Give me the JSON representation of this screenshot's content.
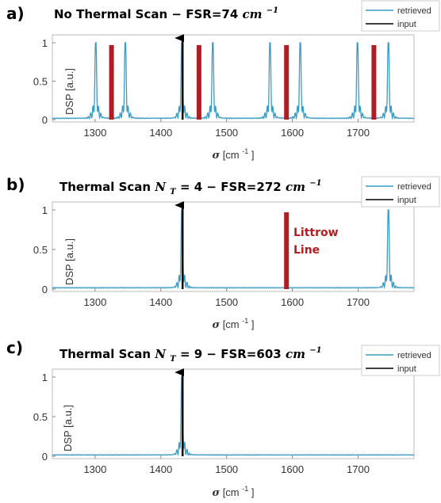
{
  "chart_data": [
    {
      "type": "line",
      "panel_label": "a)",
      "title": {
        "main": "No Thermal Scan",
        "fsr": "FSR=74",
        "unit": "cm",
        "unit_exp": "−1"
      },
      "xlabel": {
        "symbol": "σ",
        "unit": "[cm",
        "exp": "-1",
        "close": "]"
      },
      "ylabel": "DSP [a.u.]",
      "xlim": [
        1235,
        1785
      ],
      "ylim": [
        0,
        1.05
      ],
      "xticks": [
        1300,
        1400,
        1500,
        1600,
        1700
      ],
      "yticks": [
        0,
        0.5,
        1
      ],
      "legend": [
        "retrieved",
        "input"
      ],
      "retrieved_peaks": [
        1301,
        1346,
        1432,
        1479,
        1566,
        1612,
        1699,
        1746
      ],
      "input_line": {
        "x": 1433,
        "y": 1
      },
      "red_lines": [
        1325,
        1458,
        1591,
        1724
      ],
      "colors": {
        "retrieved": "#3a9cc4",
        "input": "#000000",
        "red": "#b01e23"
      }
    },
    {
      "type": "line",
      "panel_label": "b)",
      "title": {
        "main": "Thermal Scan",
        "nt_symbol": "N",
        "nt_sub": "T",
        "nt_value": "= 4 − FSR=272",
        "unit": "cm",
        "unit_exp": "−1"
      },
      "xlabel": {
        "symbol": "σ",
        "unit": "[cm",
        "exp": "-1",
        "close": "]"
      },
      "ylabel": "DSP [a.u.]",
      "xlim": [
        1235,
        1785
      ],
      "ylim": [
        0,
        1.05
      ],
      "xticks": [
        1300,
        1400,
        1500,
        1600,
        1700
      ],
      "yticks": [
        0,
        0.5,
        1
      ],
      "legend": [
        "retrieved",
        "input"
      ],
      "retrieved_peaks": [
        1432,
        1746
      ],
      "input_line": {
        "x": 1433,
        "y": 1
      },
      "red_lines": [
        1591
      ],
      "annotation": [
        "Littrow",
        "Line"
      ],
      "colors": {
        "retrieved": "#3a9cc4",
        "input": "#000000",
        "red": "#b01e23"
      }
    },
    {
      "type": "line",
      "panel_label": "c)",
      "title": {
        "main": "Thermal Scan",
        "nt_symbol": "N",
        "nt_sub": "T",
        "nt_value": "= 9 − FSR=603",
        "unit": "cm",
        "unit_exp": "−1"
      },
      "xlabel": {
        "symbol": "σ",
        "unit": "[cm",
        "exp": "-1",
        "close": "]"
      },
      "ylabel": "DSP [a.u.]",
      "xlim": [
        1235,
        1785
      ],
      "ylim": [
        0,
        1.05
      ],
      "xticks": [
        1300,
        1400,
        1500,
        1600,
        1700
      ],
      "yticks": [
        0,
        0.5,
        1
      ],
      "legend": [
        "retrieved",
        "input"
      ],
      "retrieved_peaks": [
        1432
      ],
      "input_line": {
        "x": 1433,
        "y": 1
      },
      "red_lines": [],
      "colors": {
        "retrieved": "#3a9cc4",
        "input": "#000000",
        "red": "#b01e23"
      }
    }
  ]
}
